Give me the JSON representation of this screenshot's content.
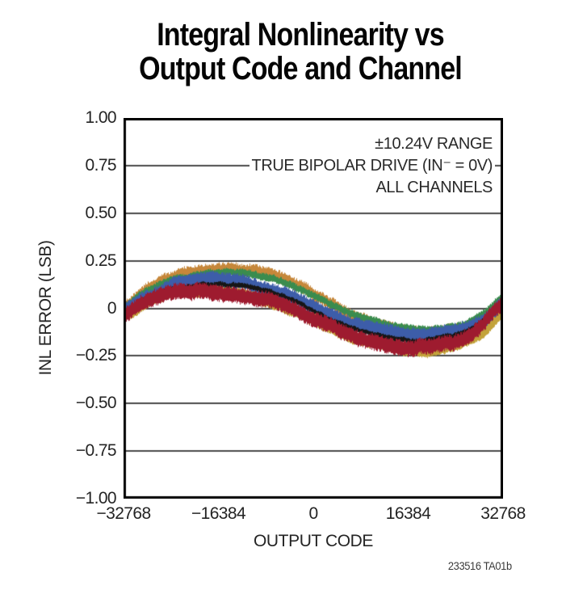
{
  "header": {
    "title_lines": [
      "Integral Nonlinearity vs",
      "Output Code and Channel"
    ]
  },
  "footer": {
    "note": "233516 TA01b"
  },
  "chart_data": {
    "type": "line",
    "title": "Integral Nonlinearity vs Output Code and Channel",
    "xlabel": "OUTPUT CODE",
    "ylabel": "INL ERROR (LSB)",
    "xlim": [
      -32768,
      32768
    ],
    "ylim": [
      -1.0,
      1.0
    ],
    "grid": true,
    "legend": "none",
    "grid_color": "#4a4a4a",
    "border_color": "#000000",
    "background_color": "#ffffff",
    "x_ticks": [
      {
        "v": -32768,
        "label": "−32768"
      },
      {
        "v": -16384,
        "label": "−16384"
      },
      {
        "v": 0,
        "label": "0"
      },
      {
        "v": 16384,
        "label": "16384"
      },
      {
        "v": 32768,
        "label": "32768"
      }
    ],
    "y_ticks": [
      {
        "v": 1.0,
        "label": "1.00"
      },
      {
        "v": 0.75,
        "label": "0.75"
      },
      {
        "v": 0.5,
        "label": "0.50"
      },
      {
        "v": 0.25,
        "label": "0.25"
      },
      {
        "v": 0,
        "label": "0"
      },
      {
        "v": -0.25,
        "label": "−0.25"
      },
      {
        "v": -0.5,
        "label": "−0.50"
      },
      {
        "v": -0.75,
        "label": "−0.75"
      },
      {
        "v": -1.0,
        "label": "−1.00"
      }
    ],
    "grid_values": [
      0.75,
      0.5,
      0.25,
      0,
      -0.25,
      -0.5,
      -0.75
    ],
    "annotations": [
      "±10.24V RANGE",
      "TRUE BIPOLAR DRIVE (IN⁻ = 0V)",
      "ALL CHANNELS"
    ],
    "curve": {
      "description": "Shared S-shaped INL base curve, uniform t from output code -32768 to +32768; values in LSB",
      "base_inl_lsb": [
        -0.01,
        0.05,
        0.09,
        0.12,
        0.135,
        0.14,
        0.135,
        0.12,
        0.095,
        0.055,
        0.01,
        -0.04,
        -0.085,
        -0.115,
        -0.14,
        -0.155,
        -0.155,
        -0.14,
        -0.11,
        -0.055,
        0.035
      ],
      "peak_lsb": 0.2,
      "min_lsb": -0.22,
      "envelope_min": 0.35,
      "envelope_span": 0.65
    },
    "series": [
      {
        "name": "channel-olive",
        "color": "#C3A33B",
        "offset": -0.055,
        "half_width": 0.026,
        "noise": 0.01,
        "skew": -0.035,
        "seed": 101
      },
      {
        "name": "channel-orange",
        "color": "#C6873A",
        "offset": 0.07,
        "half_width": 0.022,
        "noise": 0.015,
        "skew": -0.028,
        "seed": 202
      },
      {
        "name": "channel-green",
        "color": "#3A8C4E",
        "offset": 0.045,
        "half_width": 0.013,
        "noise": 0.01,
        "skew": 0,
        "seed": 303
      },
      {
        "name": "channel-blue",
        "color": "#3D5DA9",
        "offset": 0.005,
        "half_width": 0.026,
        "noise": 0.015,
        "skew": 0,
        "seed": 404
      },
      {
        "name": "channel-black",
        "color": "#161616",
        "offset": -0.03,
        "half_width": 0.009,
        "noise": 0.006,
        "skew": 0,
        "seed": 505
      },
      {
        "name": "channel-crimson",
        "color": "#9E1B2F",
        "offset": -0.062,
        "half_width": 0.028,
        "noise": 0.018,
        "skew": 0,
        "seed": 606
      }
    ]
  }
}
